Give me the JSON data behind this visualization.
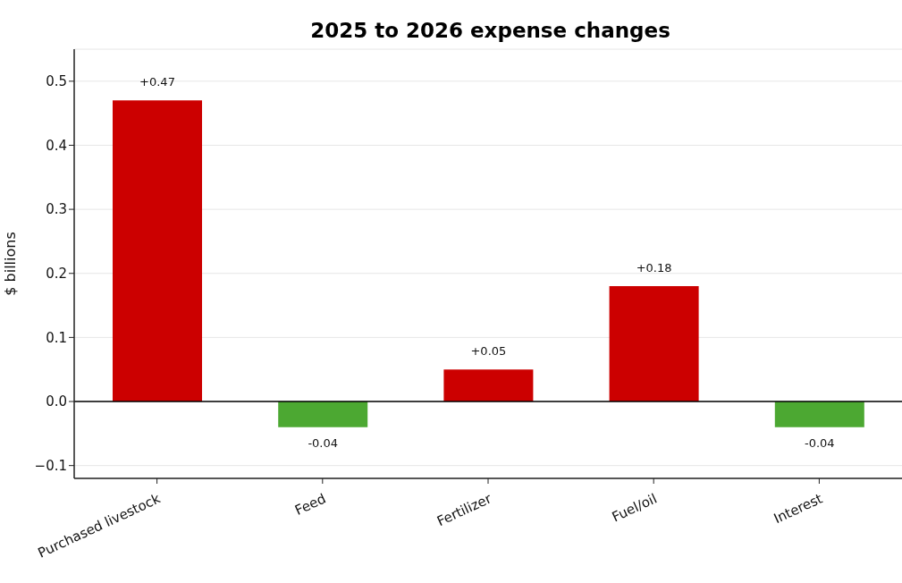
{
  "chart_data": {
    "type": "bar",
    "title": "2025 to 2026 expense changes",
    "ylabel": "$ billions",
    "categories": [
      "Purchased livestock",
      "Feed",
      "Fertilizer",
      "Fuel/oil",
      "Interest"
    ],
    "values": [
      0.47,
      -0.04,
      0.05,
      0.18,
      -0.04
    ],
    "colors": [
      "#cc0000",
      "#4ca832",
      "#cc0000",
      "#cc0000",
      "#4ca832"
    ],
    "value_labels": [
      "+0.47",
      "-0.04",
      "+0.05",
      "+0.18",
      "-0.04"
    ],
    "ylim": [
      -0.12,
      0.55
    ],
    "yticks": [
      {
        "value": -0.1,
        "label": "−0.1"
      },
      {
        "value": 0,
        "label": "0.0"
      },
      0.1,
      0.2,
      0.3,
      0.4,
      0.5
    ],
    "ref_lines": [
      {
        "axis": "y",
        "value": 0,
        "color": "#000000"
      }
    ],
    "grid": "y"
  }
}
